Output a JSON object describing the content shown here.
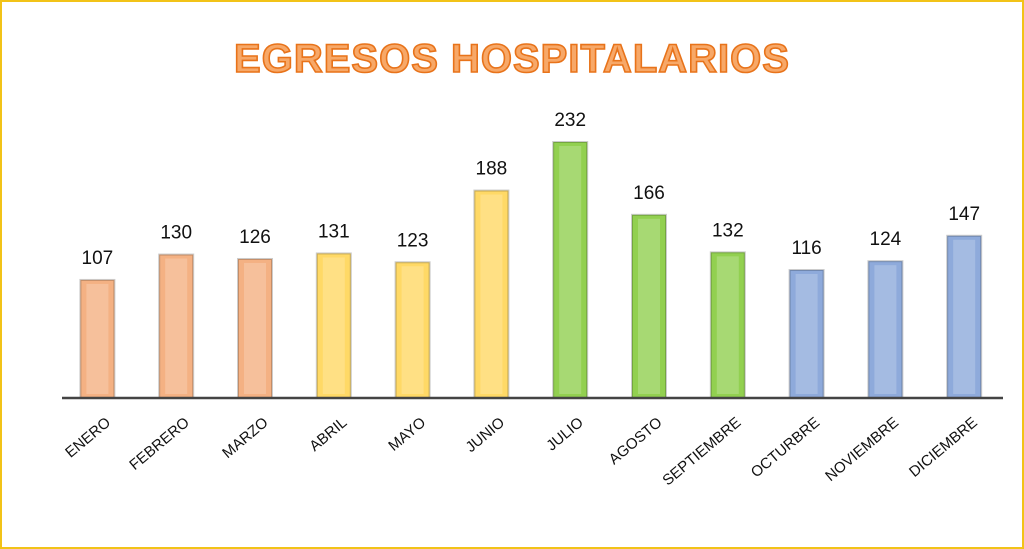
{
  "chart_data": {
    "type": "bar",
    "title": "EGRESOS HOSPITALARIOS",
    "categories": [
      "ENERO",
      "FEBRERO",
      "MARZO",
      "ABRIL",
      "MAYO",
      "JUNIO",
      "JULIO",
      "AGOSTO",
      "SEPTIEMBRE",
      "OCTURBRE",
      "NOVIEMBRE",
      "DICIEMBRE"
    ],
    "values": [
      107,
      130,
      126,
      131,
      123,
      188,
      232,
      166,
      132,
      116,
      124,
      147
    ],
    "colors": [
      "#f4b183",
      "#f4b183",
      "#f4b183",
      "#ffd966",
      "#ffd966",
      "#ffd966",
      "#92d050",
      "#92d050",
      "#92d050",
      "#8eaadb",
      "#8eaadb",
      "#8eaadb"
    ]
  }
}
